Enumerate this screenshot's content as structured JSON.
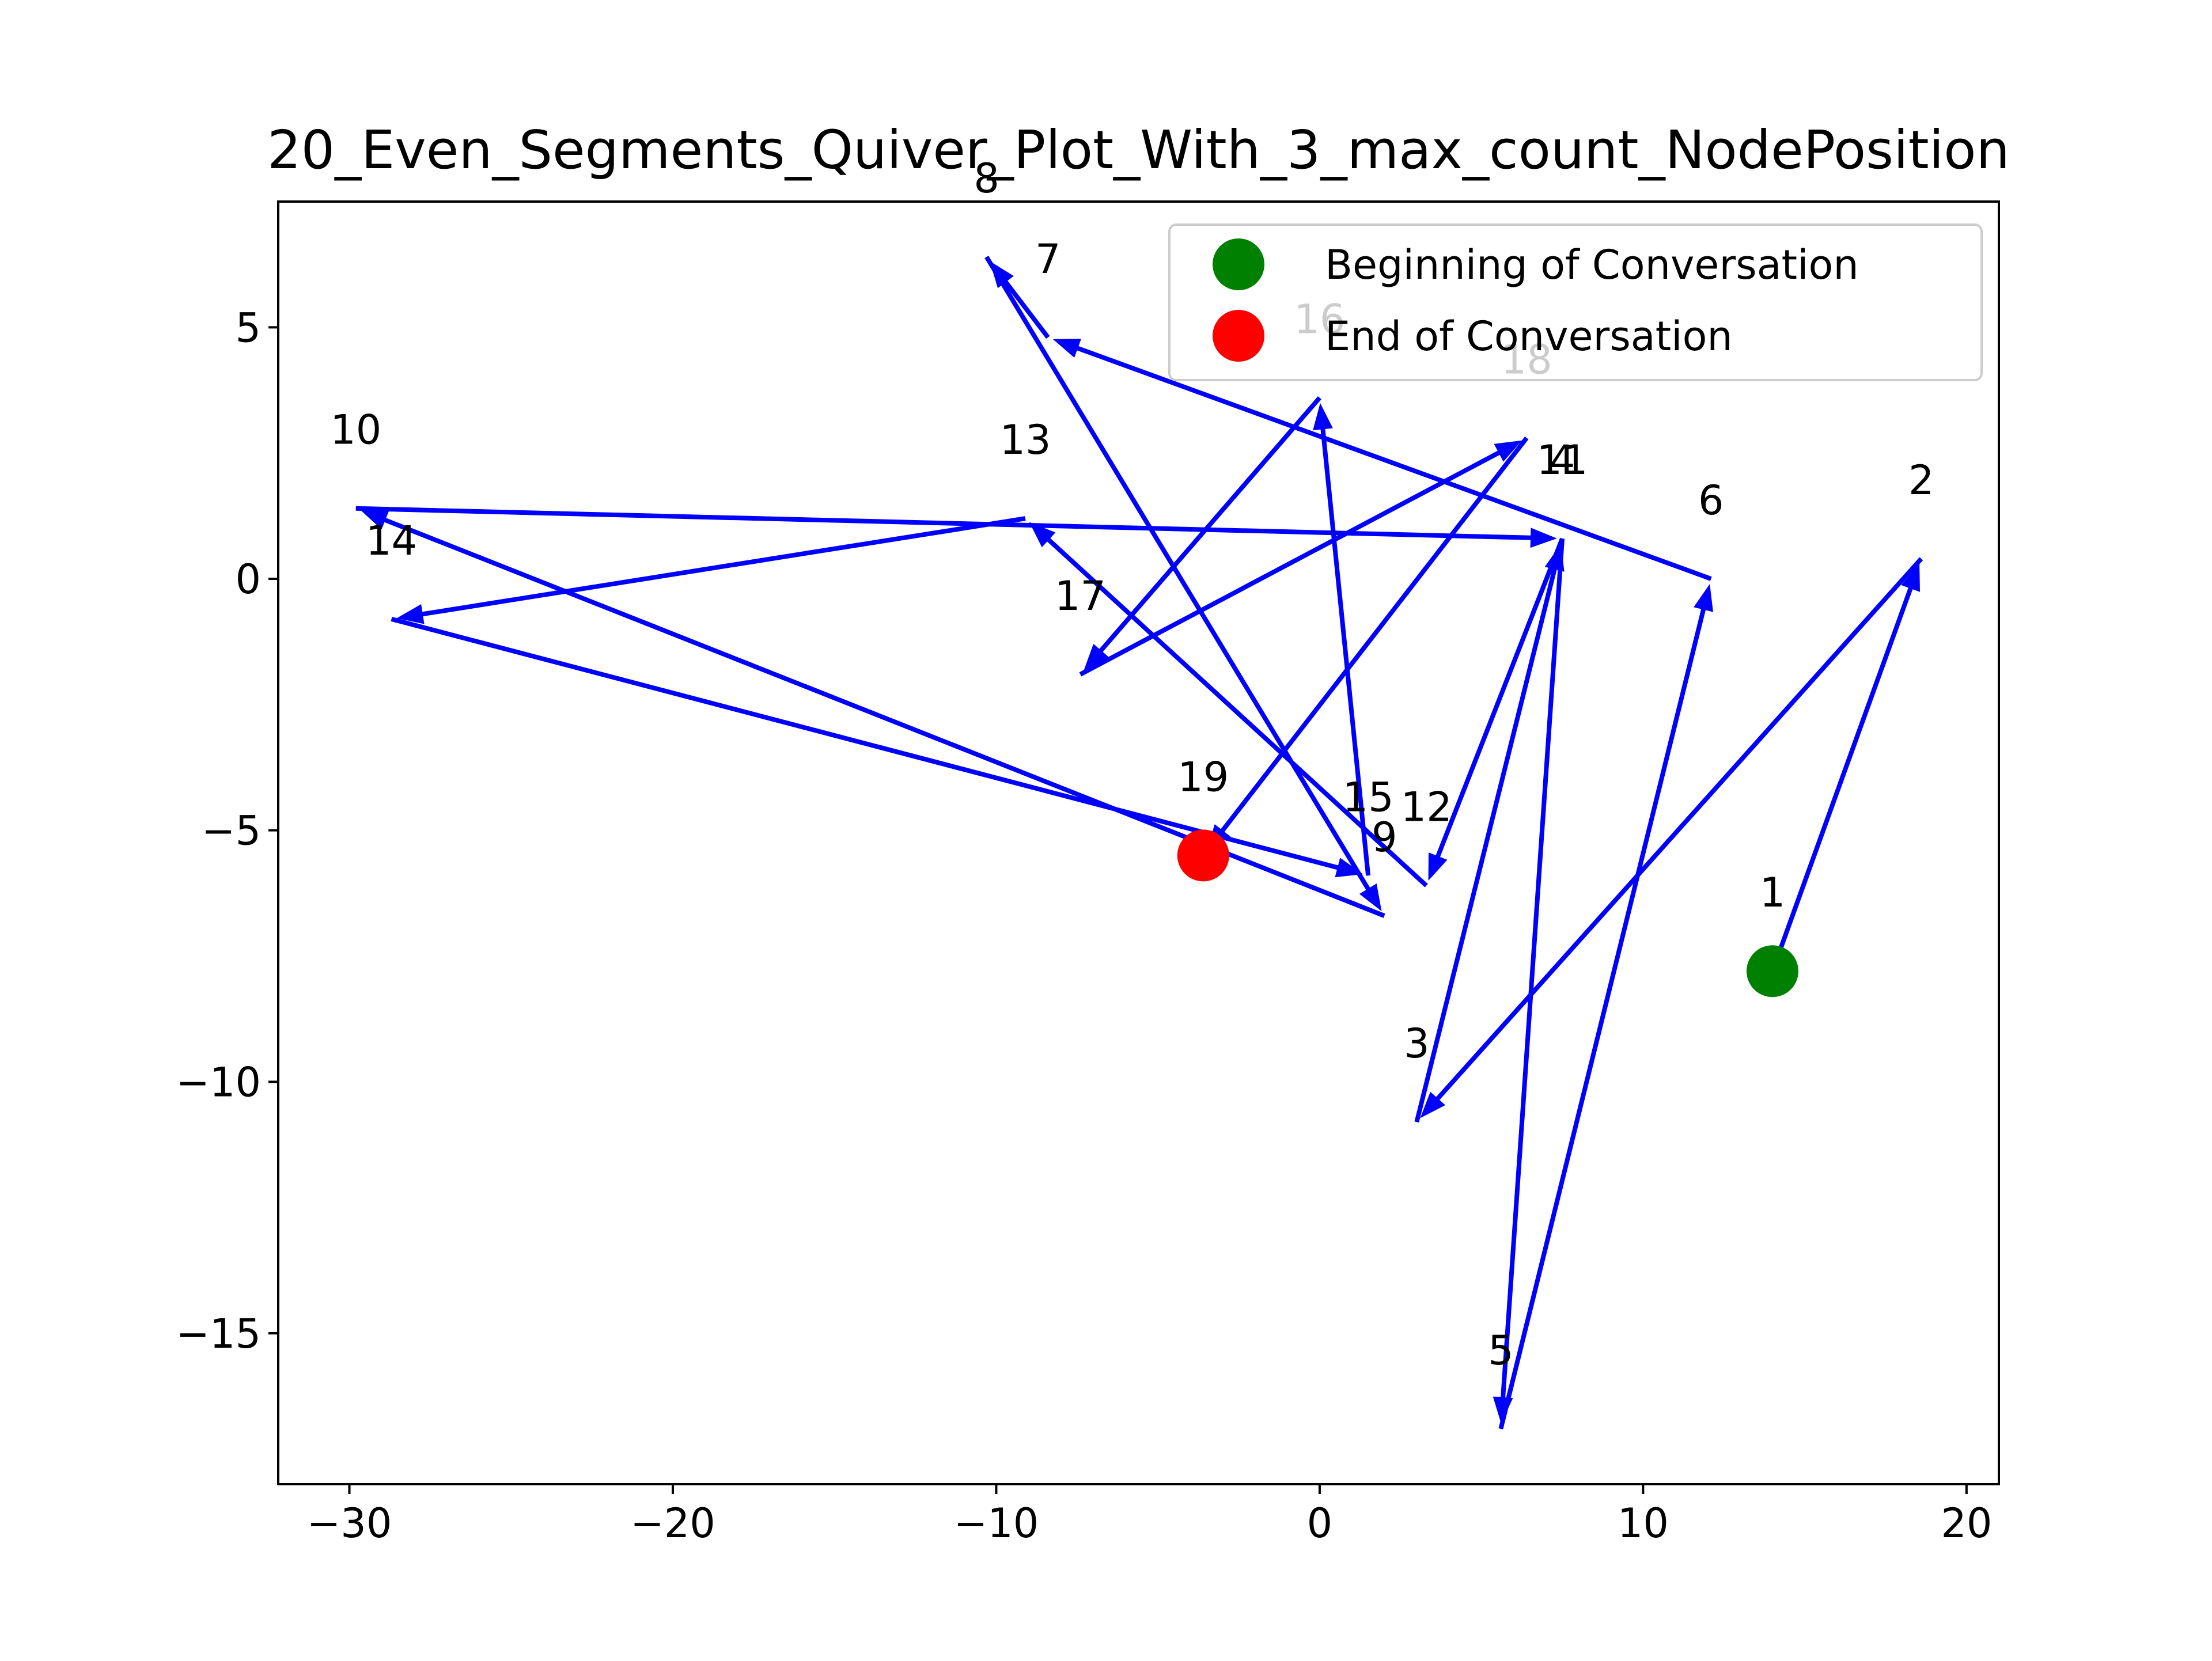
{
  "chart_data": {
    "type": "quiver",
    "title": "20_Even_Segments_Quiver_Plot_With_3_max_count_NodePosition",
    "xlabel": "",
    "ylabel": "",
    "xlim": [
      -32.2,
      21.0
    ],
    "ylim": [
      -18.0,
      7.5
    ],
    "xticks": [
      -30,
      -20,
      -10,
      0,
      10,
      20
    ],
    "xtick_labels": [
      "−30",
      "−20",
      "−10",
      "0",
      "10",
      "20"
    ],
    "yticks": [
      5,
      0,
      -5,
      -10,
      -15
    ],
    "ytick_labels": [
      "5",
      "0",
      "−5",
      "−10",
      "−15"
    ],
    "grid": false,
    "arrow_color": "#0000ff",
    "points": [
      {
        "label": "1",
        "x": 14.0,
        "y": -7.8
      },
      {
        "label": "2",
        "x": 18.6,
        "y": 0.4
      },
      {
        "label": "3",
        "x": 3.0,
        "y": -10.8
      },
      {
        "label": "4",
        "x": 7.5,
        "y": 0.8
      },
      {
        "label": "5",
        "x": 5.6,
        "y": -16.9
      },
      {
        "label": "6",
        "x": 12.1,
        "y": 0.0
      },
      {
        "label": "7",
        "x": -8.4,
        "y": 4.8
      },
      {
        "label": "8",
        "x": -10.3,
        "y": 6.4
      },
      {
        "label": "9",
        "x": 2.0,
        "y": -6.7
      },
      {
        "label": "10",
        "x": -29.8,
        "y": 1.4
      },
      {
        "label": "11",
        "x": 7.5,
        "y": 0.8
      },
      {
        "label": "12",
        "x": 3.3,
        "y": -6.1
      },
      {
        "label": "13",
        "x": -9.1,
        "y": 1.2
      },
      {
        "label": "14",
        "x": -28.7,
        "y": -0.8
      },
      {
        "label": "15",
        "x": 1.5,
        "y": -5.9
      },
      {
        "label": "16",
        "x": 0.0,
        "y": 3.6
      },
      {
        "label": "17",
        "x": -7.4,
        "y": -1.9
      },
      {
        "label": "18",
        "x": 6.4,
        "y": 2.8
      },
      {
        "label": "19",
        "x": -3.6,
        "y": -5.5
      }
    ],
    "legend": {
      "placement": "top-right",
      "entries": [
        {
          "label": "Beginning of Conversation",
          "color": "#008000"
        },
        {
          "label": "End of Conversation",
          "color": "#ff0000"
        }
      ]
    },
    "start_marker": {
      "x": 14.0,
      "y": -7.8,
      "color": "#008000"
    },
    "end_marker": {
      "x": -3.6,
      "y": -5.5,
      "color": "#ff0000"
    }
  }
}
